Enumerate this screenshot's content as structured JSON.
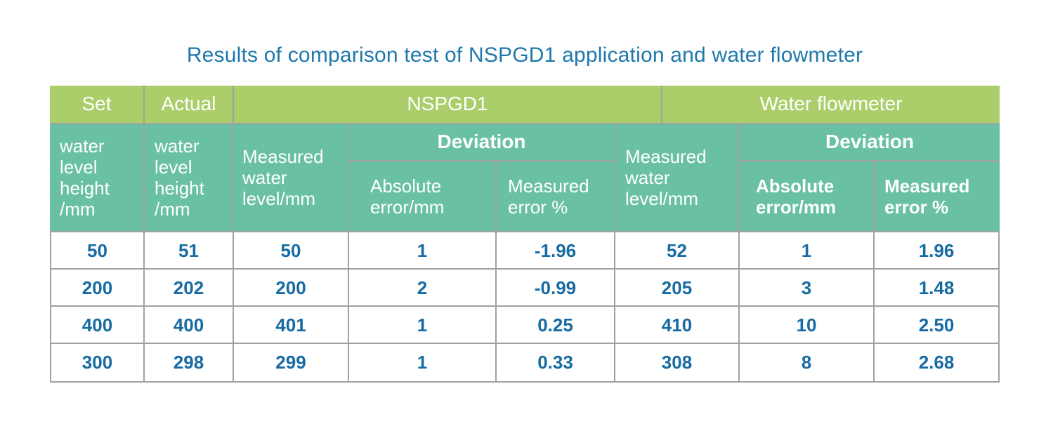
{
  "title": "Results of comparison test of NSPGD1 application and water flowmeter",
  "colors": {
    "title_text": "#1e78ab",
    "header_green_bg": "#abce6b",
    "header_teal_bg": "#69c0a5",
    "header_text": "#ffffff",
    "data_text": "#176ba3",
    "grid_line": "#a1a1a1"
  },
  "header": {
    "group_row": {
      "set": "Set",
      "actual": "Actual",
      "nspgd1": "NSPGD1",
      "water_flowmeter": "Water flowmeter"
    },
    "set_column": "water\nlevel\nheight\n/mm",
    "actual_column": "water\nlevel\nheight\n/mm",
    "nspgd1": {
      "measured": "Measured\nwater\nlevel/mm",
      "deviation": "Deviation",
      "absolute_error": "Absolute\nerror/mm",
      "measured_error": "Measured\nerror %"
    },
    "flowmeter": {
      "measured": "Measured\nwater\nlevel/mm",
      "deviation": "Deviation",
      "absolute_error": "Absolute\nerror/mm",
      "measured_error": "Measured\nerror %"
    }
  },
  "rows": [
    [
      "50",
      "51",
      "50",
      "1",
      "-1.96",
      "52",
      "1",
      "1.96"
    ],
    [
      "200",
      "202",
      "200",
      "2",
      "-0.99",
      "205",
      "3",
      "1.48"
    ],
    [
      "400",
      "400",
      "401",
      "1",
      "0.25",
      "410",
      "10",
      "2.50"
    ],
    [
      "300",
      "298",
      "299",
      "1",
      "0.33",
      "308",
      "8",
      "2.68"
    ]
  ],
  "chart_data": {
    "type": "table",
    "title": "Results of comparison test of NSPGD1 application and water flowmeter",
    "column_groups": [
      "Set",
      "Actual",
      "NSPGD1",
      "Water flowmeter"
    ],
    "columns": [
      "Set water level height /mm",
      "Actual water level height /mm",
      "NSPGD1 Measured water level/mm",
      "NSPGD1 Deviation Absolute error/mm",
      "NSPGD1 Deviation Measured error %",
      "Water flowmeter Measured water level/mm",
      "Water flowmeter Deviation Absolute error/mm",
      "Water flowmeter Deviation Measured error %"
    ],
    "rows": [
      [
        50,
        51,
        50,
        1,
        -1.96,
        52,
        1,
        1.96
      ],
      [
        200,
        202,
        200,
        2,
        -0.99,
        205,
        3,
        1.48
      ],
      [
        400,
        400,
        401,
        1,
        0.25,
        410,
        10,
        2.5
      ],
      [
        300,
        298,
        299,
        1,
        0.33,
        308,
        8,
        2.68
      ]
    ]
  }
}
